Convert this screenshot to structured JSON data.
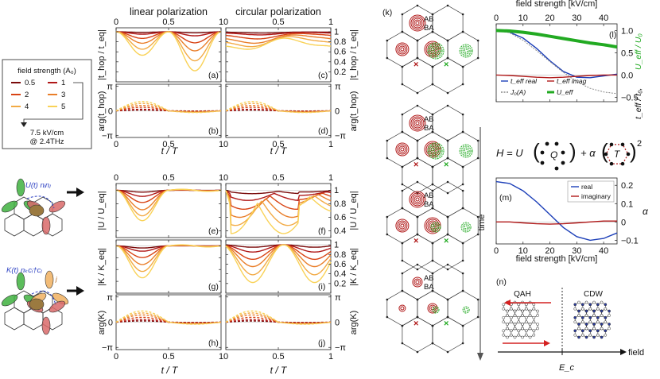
{
  "colors": {
    "series": [
      "#7a0a0a",
      "#b01818",
      "#d84314",
      "#e97e2a",
      "#f2aa45",
      "#f9d257"
    ],
    "green": "#22aa22",
    "blue": "#1c3fb8",
    "red": "#b01818",
    "grey": "#888888"
  },
  "column_titles": {
    "linear": "linear polarization",
    "circular": "circular polarization"
  },
  "axis_labels": {
    "t_over_T": "t / T",
    "thop_ratio": "|t_hop / t_eq|",
    "thop_arg": "arg(t_hop)",
    "U_ratio": "|U / U_eq|",
    "K_ratio": "|K / K_eq|",
    "K_arg": "arg(K)"
  },
  "panel_letters": [
    "(a)",
    "(b)",
    "(c)",
    "(d)",
    "(e)",
    "(f)",
    "(g)",
    "(h)",
    "(i)",
    "(j)",
    "(k)",
    "(l)",
    "(m)",
    "(n)"
  ],
  "ticks": {
    "t": [
      "0",
      "0.5",
      "1"
    ],
    "mag_left": [
      "1",
      "0.8",
      "0.6",
      "0.4",
      "0.2"
    ],
    "mag_right": [
      "1",
      "0.8",
      "0.6",
      "0.4",
      "0.2"
    ],
    "mag_right_U": [
      "1",
      "0.8",
      "0.6",
      "0.4"
    ],
    "arg": [
      "π",
      "0",
      "−π"
    ],
    "field": [
      "0",
      "10",
      "20",
      "30",
      "40"
    ],
    "l_right": [
      "1.0",
      "0.5",
      "0.0",
      "−0.5"
    ],
    "m_right": [
      "0.2",
      "0.1",
      "0",
      "−0.1"
    ]
  },
  "legend": {
    "title": "field strength (A₀)",
    "entries": [
      "0.5",
      "1",
      "2",
      "3",
      "4",
      "5"
    ],
    "footnote_1": "7.5 kV/cm",
    "footnote_2": "@ 2.4THz"
  },
  "schematics": {
    "U_label": "U(t) nᵢnⱼ",
    "K_label": "K(t) nₖcᵢ†cⱼ",
    "site_i": "i",
    "site_j": "j",
    "site_k": "k"
  },
  "panel_k": {
    "AB": "AB",
    "BA": "BA",
    "time": "time"
  },
  "panel_l": {
    "xlabel": "field strength [kV/cm]",
    "right_label_1": "t_eff / t₀,",
    "right_label_2": "U_eff / U₀",
    "legend": [
      "t_eff real",
      "t_eff imag",
      "J₀(A)",
      "U_eff"
    ]
  },
  "hamiltonian": {
    "lhs": "H = U",
    "Q": "Q",
    "plus": "+ α",
    "T": "T",
    "power": "2"
  },
  "panel_m": {
    "xlabel": "field strength [kV/cm]",
    "ylabel": "α",
    "legend": [
      "real",
      "imaginary"
    ]
  },
  "panel_n": {
    "QAH": "QAH",
    "CDW": "CDW",
    "field": "field",
    "Ec": "E_c"
  },
  "chart_data": [
    {
      "panel": "a",
      "type": "line",
      "title": "linear polarization",
      "ylabel": "|t_hop / t_eq|",
      "xlabel": "",
      "x_range": [
        0,
        1
      ],
      "ylim": [
        0,
        1.08
      ],
      "series": [
        {
          "name": "0.5",
          "shape": "valleys",
          "min": 0.98
        },
        {
          "name": "1",
          "shape": "valleys",
          "min": 0.92
        },
        {
          "name": "2",
          "shape": "valleys",
          "min": 0.78
        },
        {
          "name": "3",
          "shape": "valleys",
          "min": 0.62
        },
        {
          "name": "4",
          "shape": "valleys",
          "min": 0.42
        },
        {
          "name": "5",
          "shape": "valleys",
          "min": 0.22
        }
      ]
    },
    {
      "panel": "b",
      "type": "line",
      "ylabel": "arg(t_hop)",
      "xlabel": "t / T",
      "x_range": [
        0,
        1
      ],
      "ylim": [
        -3.1416,
        3.1416
      ],
      "series": [
        {
          "name": "0.5",
          "amp": 0.1
        },
        {
          "name": "1",
          "amp": 0.2
        },
        {
          "name": "2",
          "amp": 0.45
        },
        {
          "name": "3",
          "amp": 0.7
        },
        {
          "name": "4",
          "amp": 0.95
        },
        {
          "name": "5",
          "amp": 1.2
        }
      ]
    },
    {
      "panel": "c",
      "type": "line",
      "title": "circular polarization",
      "ylabel": "|t_hop / t_eq|",
      "x_range": [
        0,
        1
      ],
      "ylim": [
        0,
        1.08
      ],
      "series": [
        {
          "name": "0.5",
          "min": 0.97
        },
        {
          "name": "1",
          "min": 0.92
        },
        {
          "name": "2",
          "min": 0.8
        },
        {
          "name": "3",
          "min": 0.65
        },
        {
          "name": "4",
          "min": 0.5
        },
        {
          "name": "5",
          "min": 0.35
        }
      ]
    },
    {
      "panel": "d",
      "type": "line",
      "ylabel": "arg(t_hop)",
      "xlabel": "t / T",
      "x_range": [
        0,
        1
      ],
      "ylim": [
        -3.1416,
        3.1416
      ],
      "series": [
        {
          "name": "0.5",
          "amp": 0.1
        },
        {
          "name": "1",
          "amp": 0.2
        },
        {
          "name": "2",
          "amp": 0.45
        },
        {
          "name": "3",
          "amp": 0.7
        },
        {
          "name": "4",
          "amp": 0.95
        },
        {
          "name": "5",
          "amp": 1.2
        }
      ]
    },
    {
      "panel": "e",
      "type": "line",
      "ylabel": "|U / U_eq|",
      "x_range": [
        0,
        1
      ],
      "ylim": [
        0.3,
        1.1
      ],
      "series": [
        {
          "name": "0.5",
          "min": 0.97
        },
        {
          "name": "1",
          "min": 0.9
        },
        {
          "name": "2",
          "min": 0.8
        },
        {
          "name": "3",
          "min": 0.68
        },
        {
          "name": "4",
          "min": 0.58
        },
        {
          "name": "5",
          "min": 0.5
        }
      ]
    },
    {
      "panel": "f",
      "type": "line",
      "ylabel": "|U / U_eq|",
      "x_range": [
        0,
        1
      ],
      "ylim": [
        0.3,
        1.1
      ],
      "series": [
        {
          "name": "0.5",
          "min": 0.95
        },
        {
          "name": "1",
          "min": 0.85
        },
        {
          "name": "2",
          "min": 0.72
        },
        {
          "name": "3",
          "min": 0.6
        },
        {
          "name": "4",
          "min": 0.48
        },
        {
          "name": "5",
          "min": 0.36
        }
      ]
    },
    {
      "panel": "g",
      "type": "line",
      "ylabel": "|K / K_eq|",
      "x_range": [
        0,
        1
      ],
      "ylim": [
        0.2,
        1.1
      ],
      "series": [
        {
          "name": "0.5",
          "min": 0.96
        },
        {
          "name": "1",
          "min": 0.9
        },
        {
          "name": "2",
          "min": 0.78
        },
        {
          "name": "3",
          "min": 0.65
        },
        {
          "name": "4",
          "min": 0.52
        },
        {
          "name": "5",
          "min": 0.4
        }
      ]
    },
    {
      "panel": "h",
      "type": "line",
      "ylabel": "arg(K)",
      "xlabel": "t / T",
      "x_range": [
        0,
        1
      ],
      "ylim": [
        -3.1416,
        3.1416
      ],
      "series": [
        {
          "name": "0.5",
          "amp": 0.15
        },
        {
          "name": "1",
          "amp": 0.3
        },
        {
          "name": "2",
          "amp": 0.6
        },
        {
          "name": "3",
          "amp": 0.9
        },
        {
          "name": "4",
          "amp": 1.15
        },
        {
          "name": "5",
          "amp": 1.4
        }
      ]
    },
    {
      "panel": "i",
      "type": "line",
      "ylabel": "|K / K_eq|",
      "x_range": [
        0,
        1
      ],
      "ylim": [
        0,
        1.1
      ],
      "series": [
        {
          "name": "0.5",
          "min": 0.95
        },
        {
          "name": "1",
          "min": 0.85
        },
        {
          "name": "2",
          "min": 0.7
        },
        {
          "name": "3",
          "min": 0.55
        },
        {
          "name": "4",
          "min": 0.38
        },
        {
          "name": "5",
          "min": 0.22
        }
      ]
    },
    {
      "panel": "j",
      "type": "line",
      "ylabel": "arg(K)",
      "xlabel": "t / T",
      "x_range": [
        0,
        1
      ],
      "ylim": [
        -3.1416,
        3.1416
      ],
      "series": [
        {
          "name": "0.5",
          "amp": 0.15
        },
        {
          "name": "1",
          "amp": 0.3
        },
        {
          "name": "2",
          "amp": 0.6
        },
        {
          "name": "3",
          "amp": 0.9
        },
        {
          "name": "4",
          "amp": 1.15
        },
        {
          "name": "5",
          "amp": 1.4
        }
      ]
    },
    {
      "panel": "l",
      "type": "line",
      "xlabel": "field strength [kV/cm]",
      "ylabel": "t_eff / t₀, U_eff / U₀",
      "x_range": [
        0,
        45
      ],
      "ylim": [
        -0.6,
        1.15
      ],
      "series": [
        {
          "name": "t_eff real",
          "x": [
            0,
            5,
            10,
            15,
            20,
            25,
            30,
            35,
            40,
            45
          ],
          "y": [
            1.0,
            0.96,
            0.83,
            0.6,
            0.32,
            0.08,
            -0.05,
            -0.06,
            -0.02,
            0.02
          ]
        },
        {
          "name": "t_eff imag",
          "x": [
            0,
            5,
            10,
            15,
            20,
            25,
            30,
            35,
            40,
            45
          ],
          "y": [
            0.0,
            -0.01,
            -0.03,
            -0.05,
            -0.06,
            -0.05,
            -0.03,
            -0.01,
            0.0,
            0.0
          ]
        },
        {
          "name": "J₀(A)",
          "x": [
            0,
            5,
            10,
            15,
            20,
            25,
            30,
            35,
            40,
            45
          ],
          "y": [
            1.0,
            0.95,
            0.78,
            0.55,
            0.3,
            0.06,
            -0.15,
            -0.3,
            -0.38,
            -0.42
          ]
        },
        {
          "name": "U_eff",
          "x": [
            0,
            5,
            10,
            15,
            20,
            25,
            30,
            35,
            40,
            45
          ],
          "y": [
            1.0,
            0.99,
            0.96,
            0.92,
            0.87,
            0.82,
            0.77,
            0.72,
            0.68,
            0.63
          ]
        }
      ]
    },
    {
      "panel": "m",
      "type": "line",
      "xlabel": "field strength [kV/cm]",
      "ylabel": "α",
      "x_range": [
        0,
        45
      ],
      "ylim": [
        -0.12,
        0.24
      ],
      "series": [
        {
          "name": "real",
          "x": [
            0,
            5,
            10,
            15,
            20,
            25,
            30,
            35,
            40,
            45
          ],
          "y": [
            0.22,
            0.21,
            0.17,
            0.11,
            0.04,
            -0.03,
            -0.08,
            -0.1,
            -0.09,
            -0.06
          ]
        },
        {
          "name": "imaginary",
          "x": [
            0,
            5,
            10,
            15,
            20,
            25,
            30,
            35,
            40,
            45
          ],
          "y": [
            0.0,
            0.0,
            -0.005,
            -0.01,
            -0.012,
            -0.01,
            -0.005,
            0.0,
            0.005,
            0.005
          ]
        }
      ]
    }
  ]
}
